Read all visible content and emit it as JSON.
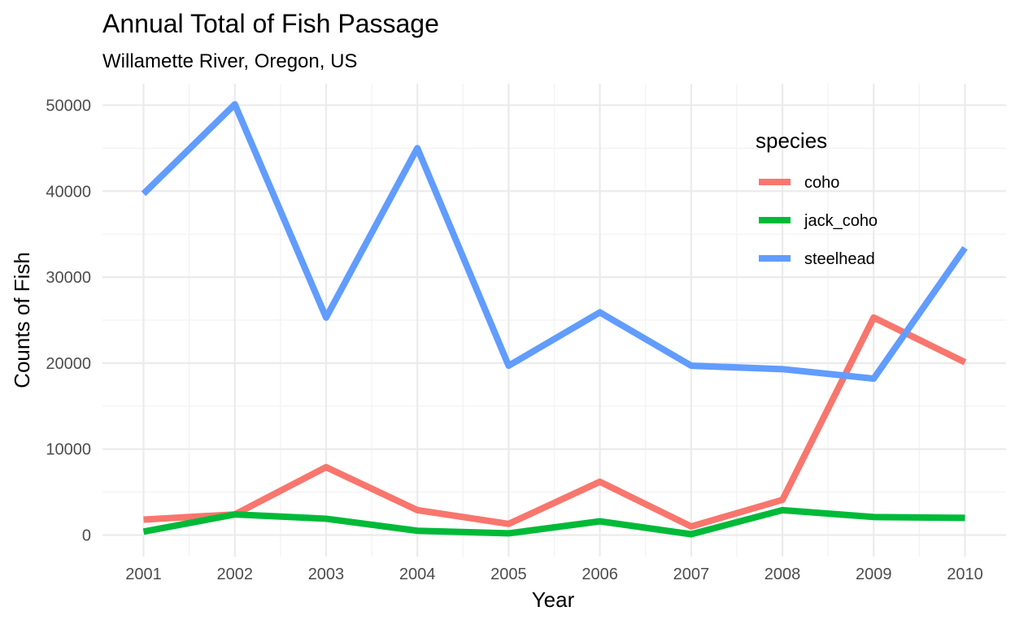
{
  "chart_data": {
    "type": "line",
    "title": "Annual Total of Fish Passage",
    "subtitle": "Willamette River, Oregon, US",
    "xlabel": "Year",
    "ylabel": "Counts of Fish",
    "x": [
      2001,
      2002,
      2003,
      2004,
      2005,
      2006,
      2007,
      2008,
      2009,
      2010
    ],
    "x_tick_labels": [
      "2001",
      "2002",
      "2003",
      "2004",
      "2005",
      "2006",
      "2007",
      "2008",
      "2009",
      "2010"
    ],
    "y_ticks": [
      0,
      10000,
      20000,
      30000,
      40000,
      50000
    ],
    "y_tick_labels": [
      "0",
      "10000",
      "20000",
      "30000",
      "40000",
      "50000"
    ],
    "ylim": [
      -2500,
      52500
    ],
    "xlim": [
      2000.55,
      2010.45
    ],
    "grid": true,
    "legend": {
      "title": "species",
      "placement": "top-right"
    },
    "series": [
      {
        "name": "coho",
        "color": "#F8766D",
        "values": [
          1800,
          2400,
          7900,
          2900,
          1300,
          6200,
          1000,
          4100,
          25300,
          20100
        ]
      },
      {
        "name": "jack_coho",
        "color": "#00BA38",
        "values": [
          400,
          2400,
          1900,
          500,
          200,
          1600,
          100,
          2900,
          2100,
          2000
        ]
      },
      {
        "name": "steelhead",
        "color": "#619CFF",
        "values": [
          39700,
          50100,
          25300,
          45000,
          19700,
          25900,
          19700,
          19300,
          18200,
          33400
        ]
      }
    ]
  }
}
